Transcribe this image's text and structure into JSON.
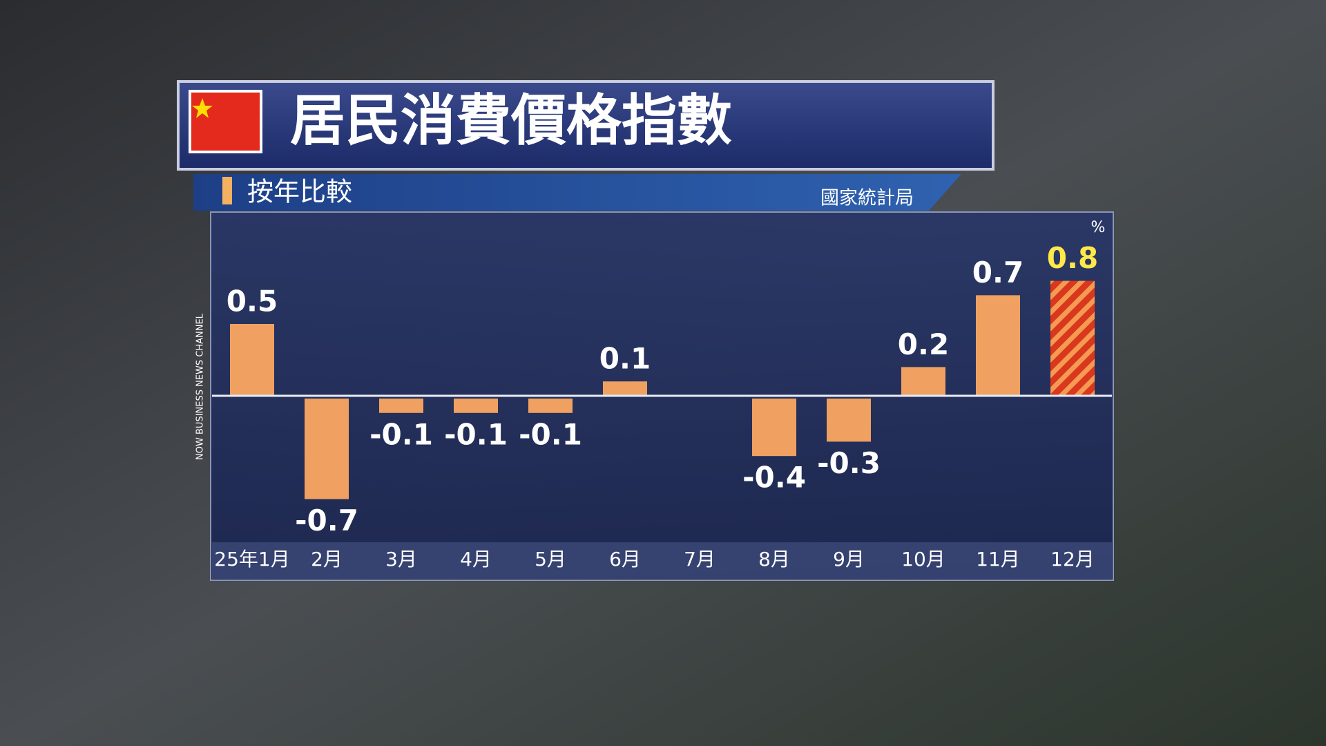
{
  "chart_data": {
    "type": "bar",
    "title": "居民消費價格指數",
    "subtitle": "按年比較",
    "source": "國家統計局",
    "unit": "%",
    "channel": "NOW BUSINESS NEWS CHANNEL",
    "categories": [
      "25年1月",
      "2月",
      "3月",
      "4月",
      "5月",
      "6月",
      "7月",
      "8月",
      "9月",
      "10月",
      "11月",
      "12月"
    ],
    "values": [
      0.5,
      -0.7,
      -0.1,
      -0.1,
      -0.1,
      0.1,
      0,
      -0.4,
      -0.3,
      0.2,
      0.7,
      0.8
    ],
    "color": "#f0a060",
    "highlight": {
      "index": 11,
      "color": "#d9381e",
      "stripe_color": "#f59a50",
      "label_color": "#ffe94a"
    },
    "ylim": [
      -1.0,
      1.25
    ]
  }
}
